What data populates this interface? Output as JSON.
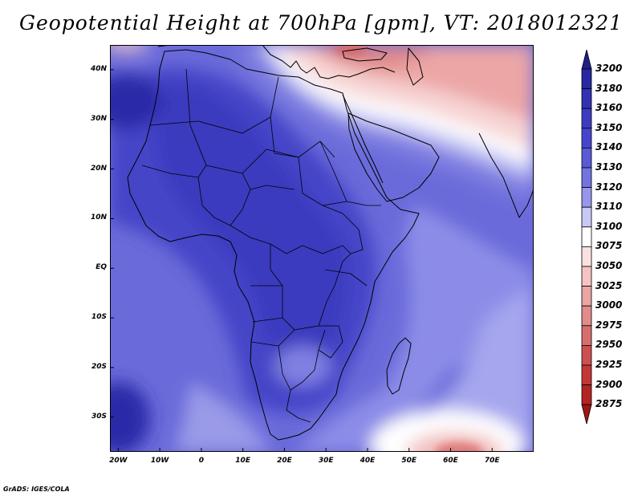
{
  "title": "Geopotential Height at 700hPa [gpm], VT: 2018012321",
  "credit": "GrADS: IGES/COLA",
  "map": {
    "lon_range": [
      -22,
      80
    ],
    "lat_range": [
      -37,
      45
    ],
    "lat_labels": [
      {
        "lat": 40,
        "text": "40N"
      },
      {
        "lat": 30,
        "text": "30N"
      },
      {
        "lat": 20,
        "text": "20N"
      },
      {
        "lat": 10,
        "text": "10N"
      },
      {
        "lat": 0,
        "text": "EQ"
      },
      {
        "lat": -10,
        "text": "10S"
      },
      {
        "lat": -20,
        "text": "20S"
      },
      {
        "lat": -30,
        "text": "30S"
      }
    ],
    "lon_labels": [
      {
        "lon": -20,
        "text": "20W"
      },
      {
        "lon": -10,
        "text": "10W"
      },
      {
        "lon": 0,
        "text": "0"
      },
      {
        "lon": 10,
        "text": "10E"
      },
      {
        "lon": 20,
        "text": "20E"
      },
      {
        "lon": 30,
        "text": "30E"
      },
      {
        "lon": 40,
        "text": "40E"
      },
      {
        "lon": 50,
        "text": "50E"
      },
      {
        "lon": 60,
        "text": "60E"
      },
      {
        "lon": 70,
        "text": "70E"
      }
    ]
  },
  "colorbar": {
    "levels": [
      "3200",
      "3180",
      "3160",
      "3150",
      "3140",
      "3130",
      "3120",
      "3110",
      "3100",
      "3075",
      "3050",
      "3025",
      "3000",
      "2975",
      "2950",
      "2925",
      "2900",
      "2875"
    ],
    "colors": [
      "#1e1e8c",
      "#2828a0",
      "#3232b4",
      "#3c3cc3",
      "#4646cd",
      "#5a5ad7",
      "#7373e1",
      "#9696eb",
      "#c8c8f5",
      "#ffffff",
      "#fae1e1",
      "#f5c3c3",
      "#eba5a5",
      "#e18c8c",
      "#d76e6e",
      "#cd5050",
      "#c33737",
      "#b42323",
      "#a01414"
    ]
  }
}
